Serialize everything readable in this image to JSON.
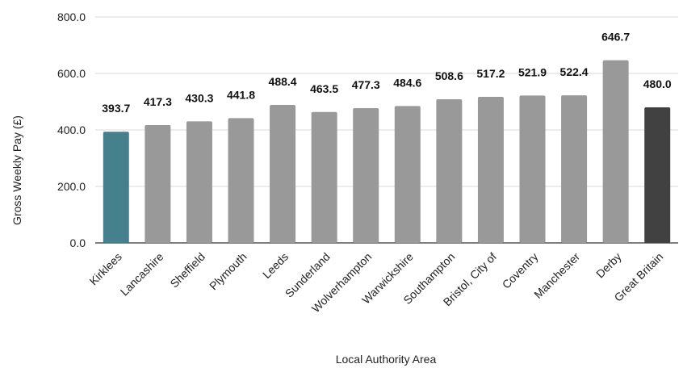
{
  "chart_data": {
    "type": "bar",
    "title": "",
    "xlabel": "Local Authority Area",
    "ylabel": "Gross Weekly Pay (£)",
    "ylim": [
      0,
      800
    ],
    "yticks": [
      "0.0",
      "200.0",
      "400.0",
      "600.0",
      "800.0"
    ],
    "grid": true,
    "categories": [
      "Kirklees",
      "Lancashire",
      "Sheffield",
      "Plymouth",
      "Leeds",
      "Sunderland",
      "Wolverhampton",
      "Warwickshire",
      "Southampton",
      "Bristol, City of",
      "Coventry",
      "Manchester",
      "Derby",
      "Great Britain"
    ],
    "values": [
      393.7,
      417.3,
      430.3,
      441.8,
      488.4,
      463.5,
      477.3,
      484.6,
      508.6,
      517.2,
      521.9,
      522.4,
      646.7,
      480.0
    ],
    "value_labels": [
      "393.7",
      "417.3",
      "430.3",
      "441.8",
      "488.4",
      "463.5",
      "477.3",
      "484.6",
      "508.6",
      "517.2",
      "521.9",
      "522.4",
      "646.7",
      "480.0"
    ],
    "bar_colors": [
      "#46808c",
      "#999999",
      "#999999",
      "#999999",
      "#999999",
      "#999999",
      "#999999",
      "#999999",
      "#999999",
      "#999999",
      "#999999",
      "#999999",
      "#999999",
      "#414141"
    ]
  }
}
